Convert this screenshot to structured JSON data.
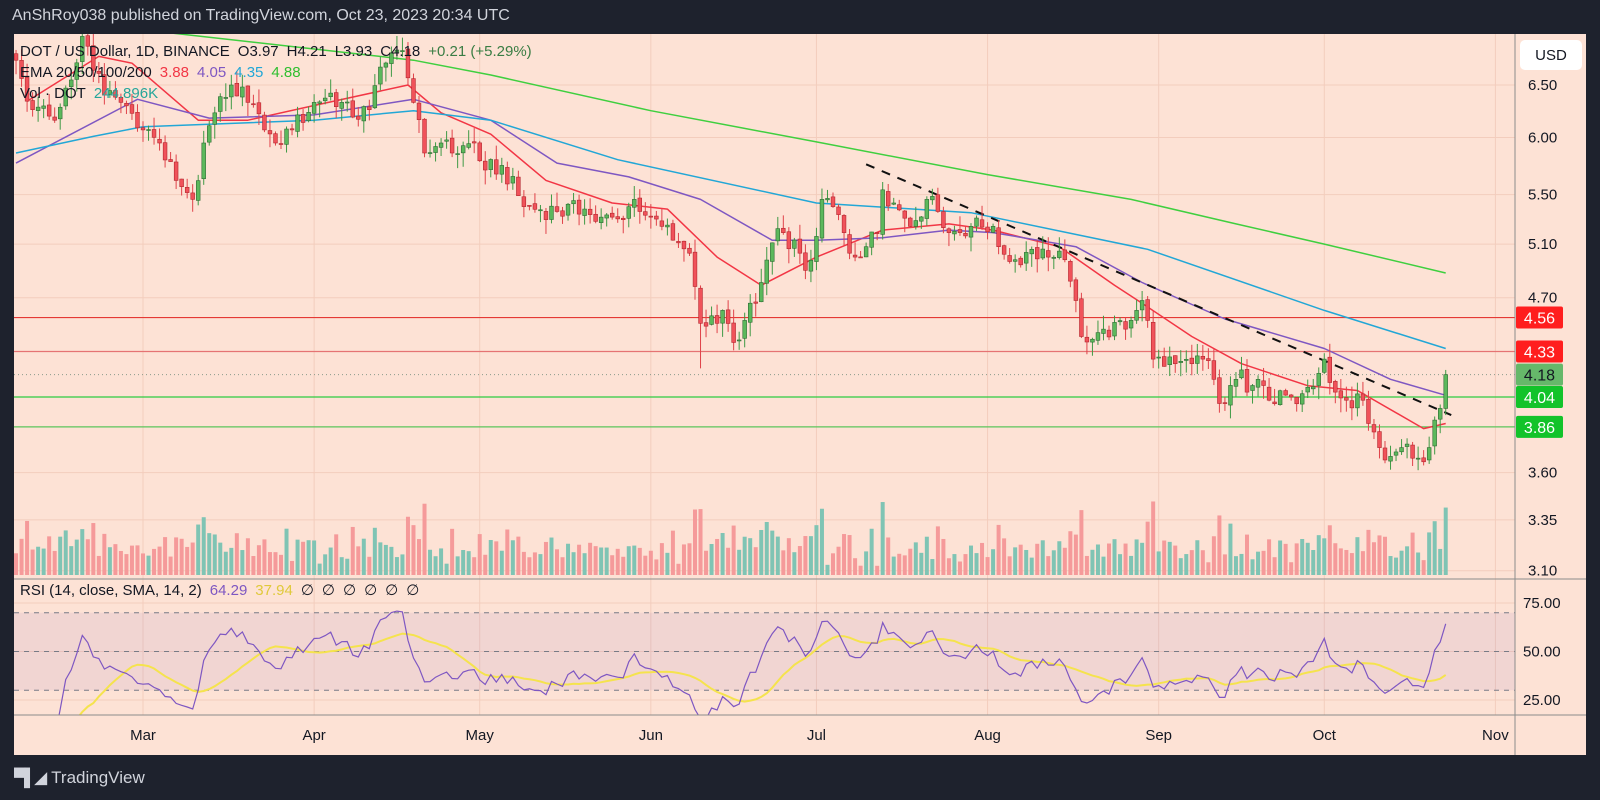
{
  "header": {
    "publisher_line": "AnShRoy038 published on TradingView.com, Oct 23, 2023 20:34 UTC"
  },
  "legend": {
    "symbol": "DOT / US Dollar, 1D, BINANCE",
    "open": "O3.97",
    "high": "H4.21",
    "low": "L3.93",
    "close": "C4.18",
    "change": "+0.21 (+5.29%)",
    "ema_label": "EMA 20/50/100/200",
    "ema_values": [
      "3.88",
      "4.05",
      "4.35",
      "4.88"
    ],
    "vol_label": "Vol · DOT",
    "vol_value": "244.896K"
  },
  "rsi_legend": {
    "label": "RSI (14, close, SMA, 14, 2)",
    "value": "64.29",
    "sma_value": "37.94",
    "empty_values": [
      "∅",
      "∅",
      "∅",
      "∅",
      "∅",
      "∅"
    ]
  },
  "price_axis": {
    "currency": "USD",
    "ticks": [
      "6.50",
      "6.00",
      "5.50",
      "5.10",
      "4.70",
      "3.60",
      "3.35",
      "3.10"
    ]
  },
  "level_labels": [
    {
      "value": "4.56",
      "bg": "#ff1e1e",
      "fg": "#ffffff"
    },
    {
      "value": "4.33",
      "bg": "#ff1e1e",
      "fg": "#ffffff"
    },
    {
      "value": "4.18",
      "bg": "#66b86a",
      "fg": "#131722"
    },
    {
      "value": "4.04",
      "bg": "#12c32a",
      "fg": "#ffffff"
    },
    {
      "value": "3.86",
      "bg": "#12c32a",
      "fg": "#ffffff"
    }
  ],
  "rsi_axis": {
    "ticks": [
      "75.00",
      "50.00",
      "25.00"
    ]
  },
  "time_axis": {
    "labels": [
      {
        "label": "Mar",
        "date": "2023-03-01"
      },
      {
        "label": "Apr",
        "date": "2023-04-01"
      },
      {
        "label": "May",
        "date": "2023-05-01"
      },
      {
        "label": "Jun",
        "date": "2023-06-01"
      },
      {
        "label": "Jul",
        "date": "2023-07-01"
      },
      {
        "label": "Aug",
        "date": "2023-08-01"
      },
      {
        "label": "Sep",
        "date": "2023-09-01"
      },
      {
        "label": "Oct",
        "date": "2023-10-01"
      },
      {
        "label": "Nov",
        "date": "2023-11-01"
      }
    ]
  },
  "footer": {
    "brand": "TradingView"
  },
  "colors": {
    "background": "#fde2d5",
    "up": "#5cb85c",
    "down": "#f0525a",
    "ema20": "#f23645",
    "ema50": "#7e57c2",
    "ema100": "#22a7d6",
    "ema200": "#3fcf3f",
    "rsi": "#7e57c2",
    "rsi_sma": "#f5e34d",
    "vol_up": "#7fc4b4",
    "vol_down": "#f59a9a"
  },
  "chart_data": {
    "type": "candlestick",
    "title": "DOT / US Dollar, 1D, BINANCE",
    "y_scale": "log",
    "ylim": [
      3.1,
      6.85
    ],
    "grid": true,
    "last_candle": {
      "date": "2023-10-23",
      "open": 3.97,
      "high": 4.21,
      "low": 3.93,
      "close": 4.18
    },
    "close_keypoints": [
      [
        "2023-02-06",
        6.75
      ],
      [
        "2023-02-09",
        6.26
      ],
      [
        "2023-02-13",
        6.16
      ],
      [
        "2023-02-16",
        6.55
      ],
      [
        "2023-02-18",
        7.0
      ],
      [
        "2023-02-22",
        6.4
      ],
      [
        "2023-02-25",
        6.33
      ],
      [
        "2023-03-01",
        6.07
      ],
      [
        "2023-03-04",
        5.95
      ],
      [
        "2023-03-07",
        5.62
      ],
      [
        "2023-03-10",
        5.46
      ],
      [
        "2023-03-12",
        5.95
      ],
      [
        "2023-03-14",
        6.23
      ],
      [
        "2023-03-17",
        6.5
      ],
      [
        "2023-03-20",
        6.33
      ],
      [
        "2023-03-23",
        6.07
      ],
      [
        "2023-03-25",
        5.95
      ],
      [
        "2023-03-28",
        6.07
      ],
      [
        "2023-04-01",
        6.33
      ],
      [
        "2023-04-04",
        6.42
      ],
      [
        "2023-04-08",
        6.19
      ],
      [
        "2023-04-11",
        6.26
      ],
      [
        "2023-04-13",
        6.68
      ],
      [
        "2023-04-17",
        6.85
      ],
      [
        "2023-04-19",
        6.33
      ],
      [
        "2023-04-21",
        5.86
      ],
      [
        "2023-04-24",
        5.95
      ],
      [
        "2023-04-26",
        5.86
      ],
      [
        "2023-04-30",
        5.95
      ],
      [
        "2023-05-02",
        5.71
      ],
      [
        "2023-05-05",
        5.75
      ],
      [
        "2023-05-09",
        5.4
      ],
      [
        "2023-05-15",
        5.36
      ],
      [
        "2023-05-20",
        5.38
      ],
      [
        "2023-05-22",
        5.28
      ],
      [
        "2023-05-26",
        5.3
      ],
      [
        "2023-05-29",
        5.46
      ],
      [
        "2023-06-01",
        5.32
      ],
      [
        "2023-06-03",
        5.24
      ],
      [
        "2023-06-06",
        5.11
      ],
      [
        "2023-06-08",
        5.03
      ],
      [
        "2023-06-10",
        4.52
      ],
      [
        "2023-06-13",
        4.52
      ],
      [
        "2023-06-14",
        4.61
      ],
      [
        "2023-06-16",
        4.39
      ],
      [
        "2023-06-18",
        4.54
      ],
      [
        "2023-06-20",
        4.66
      ],
      [
        "2023-06-21",
        4.81
      ],
      [
        "2023-06-23",
        5.11
      ],
      [
        "2023-06-25",
        5.19
      ],
      [
        "2023-06-28",
        5.03
      ],
      [
        "2023-06-29",
        4.9
      ],
      [
        "2023-07-01",
        5.16
      ],
      [
        "2023-07-02",
        5.46
      ],
      [
        "2023-07-04",
        5.4
      ],
      [
        "2023-07-06",
        5.19
      ],
      [
        "2023-07-07",
        5.03
      ],
      [
        "2023-07-10",
        5.08
      ],
      [
        "2023-07-12",
        5.19
      ],
      [
        "2023-07-13",
        5.54
      ],
      [
        "2023-07-15",
        5.43
      ],
      [
        "2023-07-18",
        5.24
      ],
      [
        "2023-07-21",
        5.46
      ],
      [
        "2023-07-23",
        5.36
      ],
      [
        "2023-07-25",
        5.19
      ],
      [
        "2023-07-29",
        5.24
      ],
      [
        "2023-08-02",
        5.24
      ],
      [
        "2023-08-03",
        5.08
      ],
      [
        "2023-08-06",
        4.98
      ],
      [
        "2023-08-09",
        5.06
      ],
      [
        "2023-08-12",
        5.0
      ],
      [
        "2023-08-15",
        4.98
      ],
      [
        "2023-08-16",
        4.82
      ],
      [
        "2023-08-17",
        4.68
      ],
      [
        "2023-08-18",
        4.43
      ],
      [
        "2023-08-22",
        4.48
      ],
      [
        "2023-08-26",
        4.48
      ],
      [
        "2023-08-28",
        4.61
      ],
      [
        "2023-08-29",
        4.68
      ],
      [
        "2023-08-30",
        4.54
      ],
      [
        "2023-08-31",
        4.28
      ],
      [
        "2023-09-04",
        4.25
      ],
      [
        "2023-09-07",
        4.25
      ],
      [
        "2023-09-09",
        4.28
      ],
      [
        "2023-09-11",
        4.15
      ],
      [
        "2023-09-12",
        4.0
      ],
      [
        "2023-09-13",
        4.0
      ],
      [
        "2023-09-15",
        4.15
      ],
      [
        "2023-09-16",
        4.21
      ],
      [
        "2023-09-17",
        4.07
      ],
      [
        "2023-09-19",
        4.15
      ],
      [
        "2023-09-21",
        4.02
      ],
      [
        "2023-09-25",
        4.04
      ],
      [
        "2023-09-27",
        4.06
      ],
      [
        "2023-09-28",
        4.1
      ],
      [
        "2023-10-01",
        4.28
      ],
      [
        "2023-10-02",
        4.13
      ],
      [
        "2023-10-03",
        4.07
      ],
      [
        "2023-10-05",
        4.02
      ],
      [
        "2023-10-08",
        4.02
      ],
      [
        "2023-10-09",
        3.88
      ],
      [
        "2023-10-10",
        3.83
      ],
      [
        "2023-10-11",
        3.74
      ],
      [
        "2023-10-12",
        3.67
      ],
      [
        "2023-10-13",
        3.69
      ],
      [
        "2023-10-15",
        3.74
      ],
      [
        "2023-10-16",
        3.76
      ],
      [
        "2023-10-17",
        3.68
      ],
      [
        "2023-10-19",
        3.66
      ],
      [
        "2023-10-20",
        3.74
      ],
      [
        "2023-10-21",
        3.9
      ],
      [
        "2023-10-22",
        3.97
      ],
      [
        "2023-10-23",
        4.18
      ]
    ],
    "ema": [
      {
        "name": "EMA 20",
        "color": "#f23645",
        "points": [
          [
            "2023-02-08",
            6.34
          ],
          [
            "2023-02-21",
            6.79
          ],
          [
            "2023-02-27",
            6.72
          ],
          [
            "2023-03-11",
            6.16
          ],
          [
            "2023-03-20",
            6.16
          ],
          [
            "2023-04-01",
            6.3
          ],
          [
            "2023-04-18",
            6.5
          ],
          [
            "2023-04-24",
            6.23
          ],
          [
            "2023-05-03",
            6.03
          ],
          [
            "2023-05-13",
            5.62
          ],
          [
            "2023-05-25",
            5.43
          ],
          [
            "2023-06-04",
            5.38
          ],
          [
            "2023-06-13",
            5.0
          ],
          [
            "2023-06-21",
            4.79
          ],
          [
            "2023-07-01",
            5.0
          ],
          [
            "2023-07-13",
            5.21
          ],
          [
            "2023-07-25",
            5.26
          ],
          [
            "2023-08-02",
            5.21
          ],
          [
            "2023-08-14",
            5.08
          ],
          [
            "2023-08-24",
            4.79
          ],
          [
            "2023-08-29",
            4.66
          ],
          [
            "2023-09-07",
            4.43
          ],
          [
            "2023-09-16",
            4.25
          ],
          [
            "2023-09-28",
            4.11
          ],
          [
            "2023-10-07",
            4.08
          ],
          [
            "2023-10-19",
            3.85
          ],
          [
            "2023-10-23",
            3.88
          ]
        ]
      },
      {
        "name": "EMA 50",
        "color": "#7e57c2",
        "points": [
          [
            "2023-02-06",
            5.77
          ],
          [
            "2023-02-28",
            6.36
          ],
          [
            "2023-03-13",
            6.18
          ],
          [
            "2023-04-01",
            6.21
          ],
          [
            "2023-04-19",
            6.36
          ],
          [
            "2023-05-03",
            6.16
          ],
          [
            "2023-05-15",
            5.77
          ],
          [
            "2023-05-28",
            5.65
          ],
          [
            "2023-06-10",
            5.46
          ],
          [
            "2023-06-23",
            5.13
          ],
          [
            "2023-07-01",
            5.13
          ],
          [
            "2023-07-13",
            5.15
          ],
          [
            "2023-07-25",
            5.21
          ],
          [
            "2023-08-02",
            5.19
          ],
          [
            "2023-08-17",
            5.08
          ],
          [
            "2023-08-29",
            4.81
          ],
          [
            "2023-09-13",
            4.55
          ],
          [
            "2023-10-01",
            4.35
          ],
          [
            "2023-10-13",
            4.15
          ],
          [
            "2023-10-23",
            4.05
          ]
        ]
      },
      {
        "name": "EMA 100",
        "color": "#22a7d6",
        "points": [
          [
            "2023-02-06",
            5.86
          ],
          [
            "2023-02-20",
            6.01
          ],
          [
            "2023-03-01",
            6.1
          ],
          [
            "2023-04-01",
            6.16
          ],
          [
            "2023-04-19",
            6.25
          ],
          [
            "2023-05-03",
            6.16
          ],
          [
            "2023-05-26",
            5.8
          ],
          [
            "2023-07-01",
            5.43
          ],
          [
            "2023-07-29",
            5.35
          ],
          [
            "2023-08-30",
            5.06
          ],
          [
            "2023-10-01",
            4.61
          ],
          [
            "2023-10-23",
            4.35
          ]
        ]
      },
      {
        "name": "EMA 200",
        "color": "#3fcf3f",
        "points": [
          [
            "2023-02-06",
            7.45
          ],
          [
            "2023-03-04",
            7.05
          ],
          [
            "2023-04-19",
            6.75
          ],
          [
            "2023-05-03",
            6.6
          ],
          [
            "2023-06-01",
            6.25
          ],
          [
            "2023-07-01",
            5.96
          ],
          [
            "2023-08-01",
            5.67
          ],
          [
            "2023-08-27",
            5.46
          ],
          [
            "2023-09-15",
            5.26
          ],
          [
            "2023-10-01",
            5.1
          ],
          [
            "2023-10-23",
            4.88
          ]
        ]
      }
    ],
    "horizontal_levels": [
      {
        "value": 4.56,
        "color": "#e53935"
      },
      {
        "value": 4.33,
        "color": "#e57373"
      },
      {
        "value": 4.04,
        "color": "#2ecc40"
      },
      {
        "value": 3.86,
        "color": "#5cc55c"
      }
    ],
    "last_price_line": 4.18,
    "trendline": [
      [
        "2023-07-10",
        5.76
      ],
      [
        "2023-10-24",
        3.93
      ]
    ],
    "rsi": {
      "period": 14,
      "sma_period": 14,
      "upper_band": 70,
      "middle": 50,
      "lower_band": 30,
      "ylim": [
        18,
        82
      ],
      "last": 64.29,
      "last_sma": 37.94
    }
  }
}
